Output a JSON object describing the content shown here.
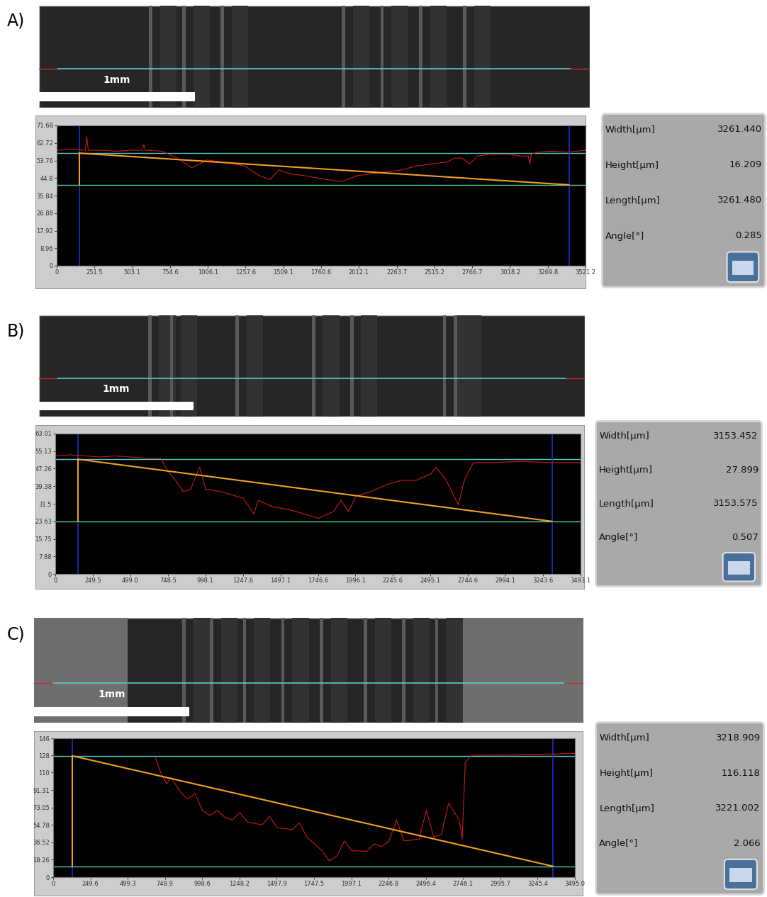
{
  "chart_data": [
    {
      "type": "line",
      "panel": "A)",
      "scale_bar": "1mm",
      "x": [
        0,
        100,
        190,
        200,
        210,
        300,
        400,
        500,
        570,
        580,
        590,
        700,
        800,
        900,
        1000,
        1100,
        1250,
        1350,
        1420,
        1480,
        1550,
        1650,
        1800,
        1900,
        2000,
        2100,
        2200,
        2300,
        2400,
        2500,
        2600,
        2650,
        2700,
        2750,
        2800,
        2900,
        3000,
        3100,
        3140,
        3150,
        3160,
        3200,
        3300,
        3400,
        3521.2
      ],
      "values": [
        59,
        59.5,
        59,
        66,
        59,
        59,
        58.5,
        59,
        59,
        62,
        59,
        58.5,
        55,
        50,
        54,
        53,
        51,
        46,
        44,
        49,
        47,
        46,
        44,
        43,
        46,
        47,
        48,
        49,
        51,
        52,
        53,
        55,
        55,
        52,
        56,
        57,
        57,
        56,
        56,
        52,
        57,
        58,
        58.5,
        58,
        59
      ],
      "color": "#d01818",
      "xlim": [
        0,
        3521.2
      ],
      "ylim": [
        0,
        71.68
      ],
      "xticks": [
        0,
        251.5,
        503.1,
        754.6,
        1006.1,
        1257.6,
        1509.1,
        1760.6,
        2012.1,
        2263.7,
        2515.2,
        2766.7,
        3018.2,
        3269.8,
        3521.2
      ],
      "yticks": [
        0,
        8.96,
        17.92,
        26.88,
        35.84,
        44.8,
        53.76,
        62.72,
        71.68
      ],
      "cursors": {
        "x": [
          150,
          3411.4
        ],
        "y": [
          57.5,
          41.3
        ]
      },
      "measurements": [
        [
          "Width[µm]",
          "3261.440"
        ],
        [
          "Height[µm]",
          "16.209"
        ],
        [
          "Length[µm]",
          "3261.480"
        ],
        [
          "Angle[°]",
          "0.285"
        ]
      ]
    },
    {
      "type": "line",
      "panel": "B)",
      "scale_bar": "1mm",
      "x": [
        0,
        100,
        200,
        300,
        400,
        500,
        600,
        700,
        750,
        800,
        850,
        900,
        960,
        1000,
        1100,
        1200,
        1250,
        1320,
        1350,
        1450,
        1550,
        1650,
        1750,
        1850,
        1900,
        1950,
        2000,
        2100,
        2200,
        2300,
        2400,
        2500,
        2530,
        2600,
        2680,
        2720,
        2780,
        2900,
        3100,
        3300,
        3493.1
      ],
      "values": [
        53,
        53.5,
        53,
        52.5,
        53,
        52.5,
        52,
        52,
        46,
        42,
        37,
        38,
        48,
        38,
        37,
        35,
        34,
        27,
        33,
        30,
        29,
        27,
        25,
        28,
        33,
        28,
        35,
        37,
        40,
        42,
        42,
        45,
        48,
        42,
        31,
        42,
        50,
        50,
        50.5,
        50,
        50
      ],
      "color": "#d01818",
      "xlim": [
        0,
        3493.1
      ],
      "ylim": [
        0,
        63.01
      ],
      "xticks": [
        0,
        249.5,
        499.0,
        748.5,
        998.1,
        1247.6,
        1497.1,
        1746.6,
        1996.1,
        2245.6,
        2495.1,
        2744.6,
        2994.1,
        3243.6,
        3493.1
      ],
      "yticks": [
        0,
        7.88,
        15.75,
        23.63,
        31.5,
        39.38,
        47.26,
        55.13,
        63.01
      ],
      "cursors": {
        "x": [
          150,
          3303.5
        ],
        "y": [
          51.5,
          23.6
        ]
      },
      "measurements": [
        [
          "Width[µm]",
          "3153.452"
        ],
        [
          "Height[µm]",
          "27.899"
        ],
        [
          "Length[µm]",
          "3153.575"
        ],
        [
          "Angle[°]",
          "0.507"
        ]
      ]
    },
    {
      "type": "line",
      "panel": "C)",
      "scale_bar": "1mm",
      "x": [
        680,
        720,
        760,
        790,
        850,
        900,
        950,
        1000,
        1050,
        1100,
        1150,
        1200,
        1250,
        1300,
        1400,
        1450,
        1500,
        1600,
        1650,
        1700,
        1800,
        1850,
        1900,
        1950,
        2000,
        2100,
        2150,
        2200,
        2250,
        2300,
        2350,
        2450,
        2500,
        2550,
        2600,
        2650,
        2720,
        2740,
        2760,
        2800,
        3000,
        3200,
        3495.0
      ],
      "values": [
        128,
        110,
        98,
        105,
        90,
        82,
        88,
        70,
        65,
        70,
        63,
        60,
        68,
        58,
        55,
        64,
        52,
        50,
        57,
        42,
        28,
        17,
        22,
        38,
        28,
        27,
        35,
        32,
        38,
        60,
        38,
        40,
        70,
        42,
        45,
        78,
        60,
        40,
        120,
        128,
        128.5,
        129,
        130
      ],
      "color": "#d01818",
      "xlim": [
        0,
        3495.0
      ],
      "ylim": [
        0,
        146
      ],
      "xticks": [
        0,
        249.6,
        499.3,
        748.9,
        998.6,
        1248.2,
        1497.9,
        1747.5,
        1997.1,
        2246.8,
        2496.4,
        2746.1,
        2995.7,
        3245.4,
        3495.0
      ],
      "yticks": [
        0,
        18.26,
        36.52,
        54.78,
        73.05,
        91.31,
        110,
        128,
        146
      ],
      "cursors": {
        "x": [
          130,
          3349
        ],
        "y": [
          127.5,
          11.4
        ]
      },
      "measurements": [
        [
          "Width[µm]",
          "3218.909"
        ],
        [
          "Height[µm]",
          "116.118"
        ],
        [
          "Length[µm]",
          "3221.002"
        ],
        [
          "Angle[°]",
          "2.066"
        ]
      ]
    }
  ]
}
